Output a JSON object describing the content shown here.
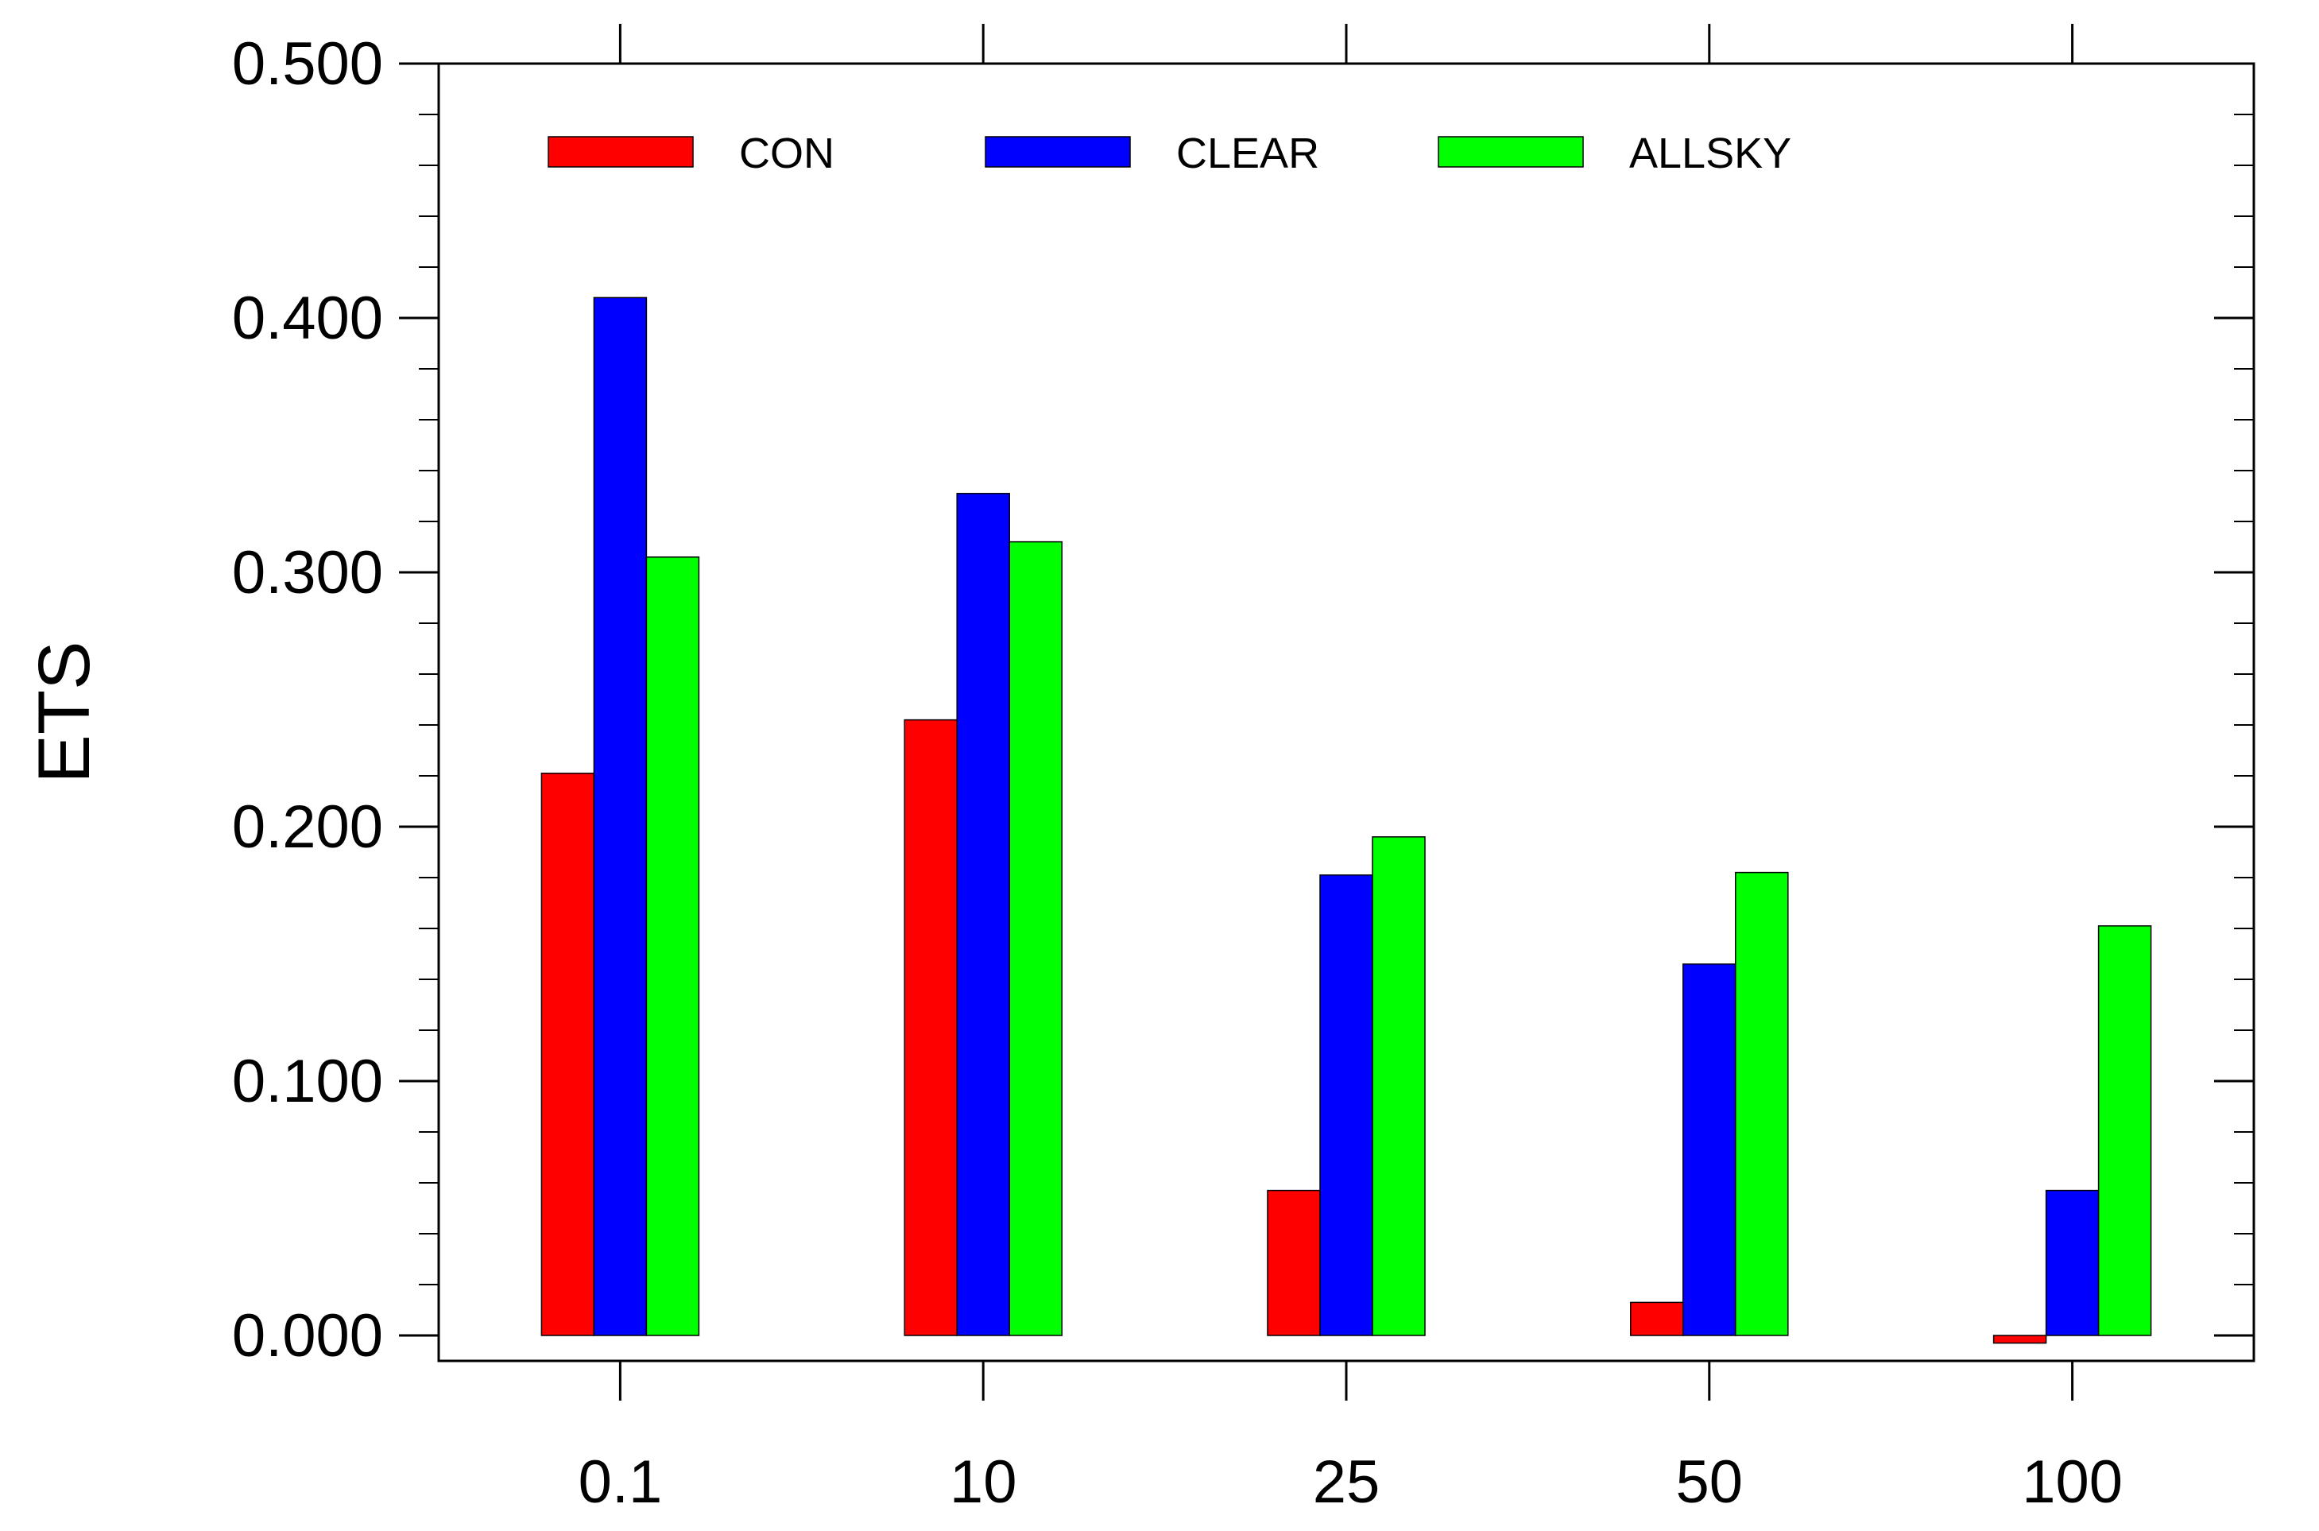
{
  "chart_data": {
    "type": "bar",
    "title": "",
    "xlabel": "",
    "ylabel": "ETS",
    "categories": [
      "0.1",
      "10",
      "25",
      "50",
      "100"
    ],
    "series": [
      {
        "name": "CON",
        "color": "#ff0000",
        "values": [
          0.221,
          0.242,
          0.057,
          0.013,
          -0.003
        ]
      },
      {
        "name": "CLEAR",
        "color": "#0000ff",
        "values": [
          0.408,
          0.331,
          0.181,
          0.146,
          0.057
        ]
      },
      {
        "name": "ALLSKY",
        "color": "#00ff00",
        "values": [
          0.306,
          0.312,
          0.196,
          0.182,
          0.161
        ]
      }
    ],
    "ylim": [
      -0.01,
      0.5
    ],
    "yticks": [
      "0.000",
      "0.100",
      "0.200",
      "0.300",
      "0.400",
      "0.500"
    ],
    "ytick_values": [
      0,
      0.1,
      0.2,
      0.3,
      0.4,
      0.5
    ],
    "legend": "top inside, horizontal",
    "grid": false
  }
}
